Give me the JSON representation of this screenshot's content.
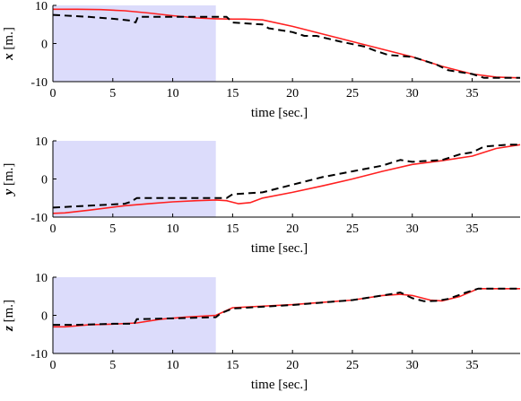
{
  "chart_data": [
    {
      "type": "line",
      "xlabel": "time [sec.]",
      "ylabel_var": "x",
      "ylabel_unit": "[m.]",
      "xlim": [
        0,
        39
      ],
      "ylim": [
        -10,
        10
      ],
      "xticks": [
        0,
        5,
        10,
        15,
        20,
        25,
        30,
        35
      ],
      "yticks": [
        -10,
        0,
        10
      ],
      "shaded_region": {
        "x": [
          0,
          13.6
        ],
        "color": "#dcdcfb"
      },
      "series": [
        {
          "style": "solid",
          "color": "#ff2020",
          "x": [
            0,
            2,
            4,
            6,
            8,
            10,
            12,
            13.6,
            15,
            16,
            17.5,
            20,
            22.5,
            25,
            27.5,
            30,
            32.5,
            35,
            37,
            39
          ],
          "y": [
            9,
            9,
            8.9,
            8.6,
            8,
            7.3,
            6.7,
            6.5,
            6.4,
            6.4,
            6.2,
            4.5,
            2.5,
            0.5,
            -1.5,
            -3.5,
            -6,
            -8,
            -8.8,
            -9
          ]
        },
        {
          "style": "dashed",
          "color": "#000000",
          "x": [
            0,
            3,
            5,
            6.5,
            6.9,
            7.1,
            10,
            13.6,
            14.5,
            15,
            17.5,
            18,
            20,
            21,
            22,
            24,
            26,
            27,
            28,
            30,
            32,
            33,
            35,
            36,
            38,
            39
          ],
          "y": [
            7.5,
            7,
            6.5,
            6,
            5.5,
            7,
            7,
            7,
            7,
            5.5,
            5,
            4,
            3,
            2,
            2,
            0.5,
            -0.8,
            -2,
            -3,
            -3.5,
            -5.5,
            -7,
            -8,
            -9,
            -9,
            -9
          ]
        }
      ]
    },
    {
      "type": "line",
      "xlabel": "time [sec.]",
      "ylabel_var": "y",
      "ylabel_unit": "[m.]",
      "xlim": [
        0,
        39
      ],
      "ylim": [
        -10,
        10
      ],
      "xticks": [
        0,
        5,
        10,
        15,
        20,
        25,
        30,
        35
      ],
      "yticks": [
        -10,
        0,
        10
      ],
      "shaded_region": {
        "x": [
          0,
          13.6
        ],
        "color": "#dcdcfb"
      },
      "series": [
        {
          "style": "solid",
          "color": "#ff2020",
          "x": [
            0,
            1,
            3,
            6,
            8,
            10,
            12,
            13.6,
            14.5,
            15.5,
            16.5,
            17.5,
            20,
            22.5,
            25,
            27.5,
            30,
            32.5,
            35,
            37,
            39
          ],
          "y": [
            -9,
            -8.9,
            -8.2,
            -7,
            -6.5,
            -6,
            -5.7,
            -5.5,
            -5.7,
            -6.5,
            -6.2,
            -5,
            -3.5,
            -1.8,
            0,
            2,
            3.8,
            4.8,
            6,
            8,
            9
          ]
        },
        {
          "style": "dashed",
          "color": "#000000",
          "x": [
            0,
            3,
            6,
            6.5,
            7,
            10,
            13.6,
            14.5,
            15,
            17.5,
            20,
            22.5,
            25,
            27.5,
            29,
            30,
            32.5,
            34,
            35,
            36,
            38,
            39
          ],
          "y": [
            -7.5,
            -7,
            -6.5,
            -6,
            -5,
            -5,
            -5,
            -5,
            -4,
            -3.5,
            -1.5,
            0.5,
            2,
            3.5,
            5,
            4.5,
            5,
            6.5,
            7,
            8.5,
            9,
            9
          ]
        }
      ]
    },
    {
      "type": "line",
      "xlabel": "time [sec.]",
      "ylabel_var": "z",
      "ylabel_unit": "[m.]",
      "xlim": [
        0,
        39
      ],
      "ylim": [
        -10,
        10
      ],
      "xticks": [
        0,
        5,
        10,
        15,
        20,
        25,
        30,
        35
      ],
      "yticks": [
        -10,
        0,
        10
      ],
      "shaded_region": {
        "x": [
          0,
          13.6
        ],
        "color": "#dcdcfb"
      },
      "series": [
        {
          "style": "solid",
          "color": "#ff2020",
          "x": [
            0,
            1,
            3,
            5,
            7,
            9,
            11,
            13.6,
            15,
            20,
            25,
            27.5,
            29,
            30,
            31.5,
            32.5,
            34,
            35.5,
            37,
            39
          ],
          "y": [
            -3,
            -3,
            -2.5,
            -2.3,
            -2,
            -1,
            -0.5,
            0,
            2,
            2.8,
            4,
            5.2,
            5.5,
            5.2,
            4,
            3.8,
            5,
            7,
            7,
            7
          ]
        },
        {
          "style": "dashed",
          "color": "#000000",
          "x": [
            0,
            2,
            5,
            6.8,
            7,
            10,
            13.6,
            14,
            15,
            20,
            25,
            27.5,
            28.5,
            29,
            30,
            31,
            32,
            33,
            34.5,
            35.5,
            37,
            39
          ],
          "y": [
            -2.5,
            -2.5,
            -2.2,
            -2.2,
            -1,
            -0.8,
            -0.5,
            0.5,
            1.8,
            2.7,
            4,
            5.2,
            5.7,
            6,
            4.5,
            3.7,
            3.8,
            4.3,
            6,
            7,
            7,
            7
          ]
        }
      ]
    }
  ]
}
